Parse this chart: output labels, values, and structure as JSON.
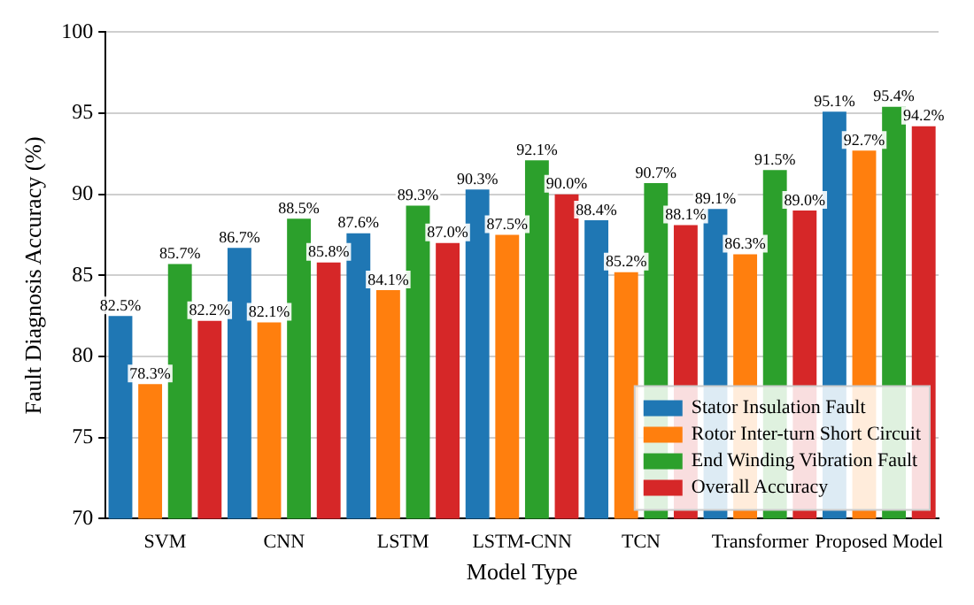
{
  "chart_data": {
    "type": "bar",
    "xlabel": "Model Type",
    "ylabel": "Fault Diagnosis Accuracy (%)",
    "categories": [
      "SVM",
      "CNN",
      "LSTM",
      "LSTM-CNN",
      "TCN",
      "Transformer",
      "Proposed Model"
    ],
    "series": [
      {
        "name": "Stator Insulation Fault",
        "color": "#1f77b4",
        "values": [
          82.5,
          86.7,
          87.6,
          90.3,
          88.4,
          89.1,
          95.1
        ],
        "value_labels": [
          "82.5%",
          "86.7%",
          "87.6%",
          "90.3%",
          "88.4%",
          "89.1%",
          "95.1%"
        ]
      },
      {
        "name": "Rotor Inter-turn Short Circuit",
        "color": "#ff7f0e",
        "values": [
          78.3,
          82.1,
          84.1,
          87.5,
          85.2,
          86.3,
          92.7
        ],
        "value_labels": [
          "78.3%",
          "82.1%",
          "84.1%",
          "87.5%",
          "85.2%",
          "86.3%",
          "92.7%"
        ]
      },
      {
        "name": "End Winding Vibration Fault",
        "color": "#2ca02c",
        "values": [
          85.7,
          88.5,
          89.3,
          92.1,
          90.7,
          91.5,
          95.4
        ],
        "value_labels": [
          "85.7%",
          "88.5%",
          "89.3%",
          "92.1%",
          "90.7%",
          "91.5%",
          "95.4%"
        ]
      },
      {
        "name": "Overall Accuracy",
        "color": "#d62728",
        "values": [
          82.2,
          85.8,
          87.0,
          90.0,
          88.1,
          89.0,
          94.2
        ],
        "value_labels": [
          "82.2%",
          "85.8%",
          "87.0%",
          "90.0%",
          "88.1%",
          "89.0%",
          "94.2%"
        ]
      }
    ],
    "ylim": [
      70,
      100
    ],
    "yticks": [
      70,
      75,
      80,
      85,
      90,
      95,
      100
    ],
    "grid": "y",
    "legend": "bottom right"
  }
}
